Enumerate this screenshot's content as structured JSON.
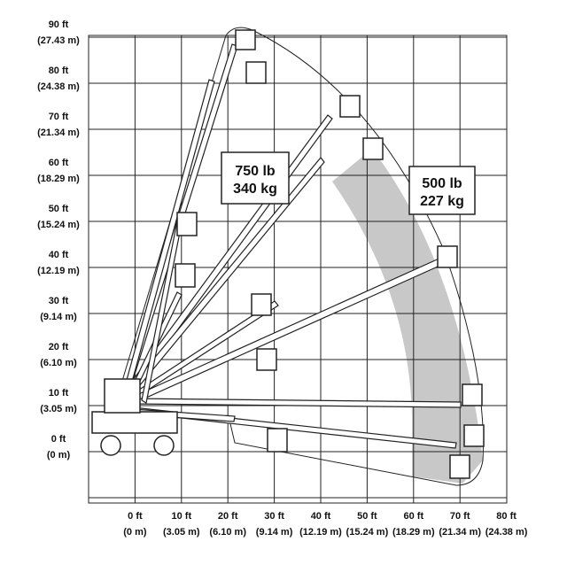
{
  "y_axis": {
    "labels": [
      {
        "ft": "90 ft",
        "m": "(27.43 m)"
      },
      {
        "ft": "80 ft",
        "m": "(24.38 m)"
      },
      {
        "ft": "70 ft",
        "m": "(21.34 m)"
      },
      {
        "ft": "60 ft",
        "m": "(18.29 m)"
      },
      {
        "ft": "50 ft",
        "m": "(15.24 m)"
      },
      {
        "ft": "40 ft",
        "m": "(12.19 m)"
      },
      {
        "ft": "30 ft",
        "m": "(9.14 m)"
      },
      {
        "ft": "20 ft",
        "m": "(6.10 m)"
      },
      {
        "ft": "10 ft",
        "m": "(3.05 m)"
      },
      {
        "ft": "0 ft",
        "m": "(0 m)"
      }
    ]
  },
  "x_axis": {
    "labels": [
      {
        "ft": "0 ft",
        "m": "(0 m)"
      },
      {
        "ft": "10 ft",
        "m": "(3.05 m)"
      },
      {
        "ft": "20 ft",
        "m": "(6.10 m)"
      },
      {
        "ft": "30 ft",
        "m": "(9.14 m)"
      },
      {
        "ft": "40 ft",
        "m": "(12.19 m)"
      },
      {
        "ft": "50 ft",
        "m": "(15.24 m)"
      },
      {
        "ft": "60 ft",
        "m": "(18.29 m)"
      },
      {
        "ft": "70 ft",
        "m": "(21.34 m)"
      },
      {
        "ft": "80 ft",
        "m": "(24.38 m)"
      }
    ]
  },
  "capacities": [
    {
      "weight": "750 lb",
      "metric": "340 kg"
    },
    {
      "weight": "500 lb",
      "metric": "227 kg"
    }
  ]
}
